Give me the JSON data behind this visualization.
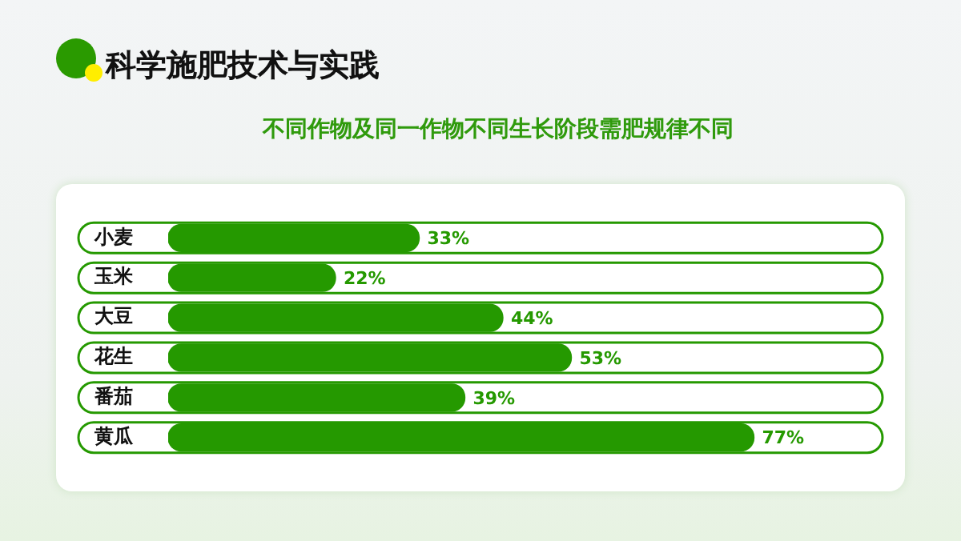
{
  "chart_data": {
    "type": "bar",
    "orientation": "horizontal",
    "title": "科学施肥技术与实践",
    "subtitle": "不同作物及同一作物不同生长阶段需肥规律不同",
    "categories": [
      "小麦",
      "玉米",
      "大豆",
      "花生",
      "番茄",
      "黄瓜"
    ],
    "values": [
      33,
      22,
      44,
      53,
      39,
      77
    ],
    "color": "#259900",
    "value_labels": [
      "33%",
      "22%",
      "44%",
      "53%",
      "39%",
      "77%"
    ],
    "tick_labels": "y",
    "grid": false,
    "legend": false
  }
}
